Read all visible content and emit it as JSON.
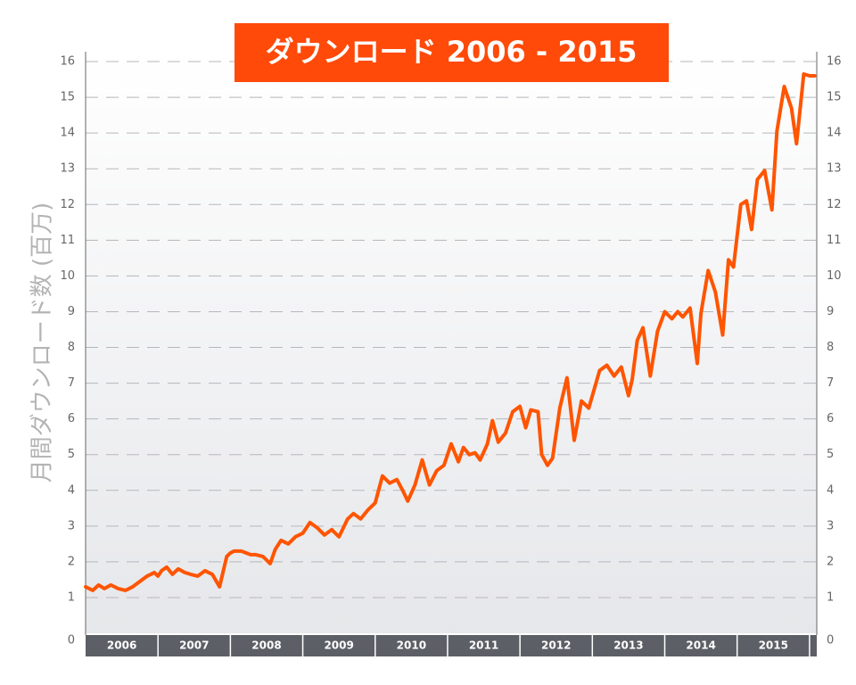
{
  "chart_data": {
    "type": "line",
    "title": "ダウンロード 2006 - 2015",
    "ylabel": "月間ダウンロード数 (百万)",
    "xlabel": "",
    "ylim": [
      0,
      16
    ],
    "yticks": [
      0,
      1,
      2,
      3,
      4,
      5,
      6,
      7,
      8,
      9,
      10,
      11,
      12,
      13,
      14,
      15,
      16
    ],
    "y_axis_both_sides": true,
    "grid": "horizontal dashed",
    "x_range_years": [
      2006,
      2016.1
    ],
    "year_labels": [
      "2006",
      "2007",
      "2008",
      "2009",
      "2010",
      "2011",
      "2012",
      "2013",
      "2014",
      "2015"
    ],
    "series": [
      {
        "color": "#ff5500",
        "x": [
          2006.0,
          2006.1,
          2006.18,
          2006.26,
          2006.35,
          2006.45,
          2006.55,
          2006.65,
          2006.75,
          2006.85,
          2006.95,
          2007.0,
          2007.05,
          2007.12,
          2007.2,
          2007.28,
          2007.37,
          2007.45,
          2007.55,
          2007.65,
          2007.75,
          2007.85,
          2007.95,
          2008.0,
          2008.05,
          2008.15,
          2008.28,
          2008.35,
          2008.45,
          2008.55,
          2008.62,
          2008.7,
          2008.8,
          2008.9,
          2009.0,
          2009.1,
          2009.2,
          2009.3,
          2009.4,
          2009.5,
          2009.62,
          2009.7,
          2009.8,
          2009.9,
          2010.0,
          2010.1,
          2010.2,
          2010.3,
          2010.38,
          2010.45,
          2010.55,
          2010.65,
          2010.75,
          2010.85,
          2010.95,
          2011.05,
          2011.15,
          2011.22,
          2011.3,
          2011.38,
          2011.45,
          2011.55,
          2011.62,
          2011.7,
          2011.8,
          2011.9,
          2012.0,
          2012.08,
          2012.15,
          2012.25,
          2012.3,
          2012.38,
          2012.45,
          2012.55,
          2012.65,
          2012.75,
          2012.85,
          2012.95,
          2013.05,
          2013.1,
          2013.2,
          2013.3,
          2013.4,
          2013.5,
          2013.55,
          2013.62,
          2013.7,
          2013.8,
          2013.9,
          2014.0,
          2014.1,
          2014.18,
          2014.25,
          2014.35,
          2014.45,
          2014.5,
          2014.6,
          2014.7,
          2014.8,
          2014.88,
          2014.95,
          2015.05,
          2015.13,
          2015.2,
          2015.28,
          2015.38,
          2015.48,
          2015.55,
          2015.65,
          2015.75,
          2015.82,
          2015.92,
          2016.0,
          2016.07
        ],
        "values": [
          1.3,
          1.2,
          1.35,
          1.25,
          1.35,
          1.25,
          1.2,
          1.3,
          1.45,
          1.6,
          1.7,
          1.6,
          1.75,
          1.85,
          1.65,
          1.8,
          1.7,
          1.65,
          1.6,
          1.75,
          1.65,
          1.3,
          2.15,
          2.25,
          2.3,
          2.3,
          2.2,
          2.2,
          2.15,
          1.95,
          2.35,
          2.6,
          2.5,
          2.7,
          2.8,
          3.1,
          2.95,
          2.75,
          2.9,
          2.7,
          3.2,
          3.35,
          3.2,
          3.45,
          3.65,
          4.4,
          4.2,
          4.3,
          4.0,
          3.7,
          4.15,
          4.85,
          4.15,
          4.55,
          4.7,
          5.3,
          4.8,
          5.2,
          5.0,
          5.05,
          4.85,
          5.3,
          5.95,
          5.35,
          5.6,
          6.2,
          6.35,
          5.75,
          6.25,
          6.2,
          5.0,
          4.7,
          4.9,
          6.3,
          7.15,
          5.4,
          6.5,
          6.3,
          7.0,
          7.35,
          7.5,
          7.2,
          7.45,
          6.65,
          7.1,
          8.2,
          8.55,
          7.2,
          8.45,
          9.0,
          8.8,
          9.0,
          8.85,
          9.1,
          7.55,
          8.95,
          10.15,
          9.55,
          8.35,
          10.45,
          10.25,
          12.0,
          12.1,
          11.3,
          12.7,
          12.95,
          11.85,
          14.05,
          15.3,
          14.7,
          13.7,
          15.65,
          15.6,
          15.6
        ]
      }
    ]
  }
}
